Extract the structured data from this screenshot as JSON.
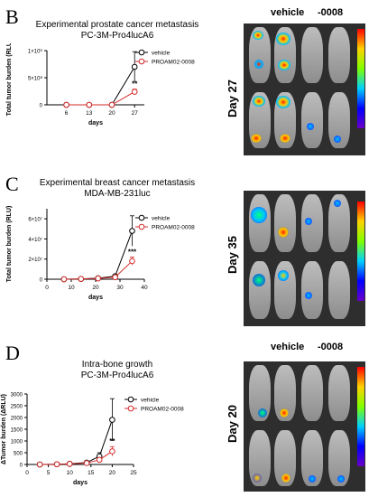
{
  "panels": [
    {
      "letter": "B",
      "title": [
        "Experimental prostate cancer metastasis",
        "PC-3M-Pro4lucA6"
      ],
      "day_label": "Day 27",
      "col_vehicle": "vehicle",
      "col_drug": "-0008"
    },
    {
      "letter": "C",
      "title": [
        "Experimental breast cancer metastasis",
        "MDA-MB-231luc"
      ],
      "day_label": "Day 35",
      "col_vehicle": "vehicle",
      "col_drug": "-0008"
    },
    {
      "letter": "D",
      "title": [
        "Intra-bone growth",
        "PC-3M-Pro4lucA6"
      ],
      "day_label": "Day 20",
      "col_vehicle": "vehicle",
      "col_drug": "-0008"
    }
  ],
  "colors": {
    "vehicle": "#000000",
    "drug": "#d42a2a"
  },
  "chart_data": [
    {
      "type": "line",
      "title": "Experimental prostate cancer metastasis PC-3M-Pro4lucA6",
      "xlabel": "days",
      "ylabel": "Total tumor burden (RLU)",
      "x_ticks": [
        "6",
        "13",
        "20",
        "27"
      ],
      "x": [
        6,
        13,
        20,
        27
      ],
      "y_ticks": [
        "0",
        "5×10⁸",
        "1×10⁹"
      ],
      "ylim": [
        0,
        1000000000
      ],
      "annotation": {
        "text": "**",
        "x": 27
      },
      "series": [
        {
          "name": "vehicle",
          "values": [
            0,
            0,
            0,
            700000000
          ],
          "err": [
            0,
            0,
            0,
            280000000
          ]
        },
        {
          "name": "PROAM02-0008",
          "values": [
            0,
            0,
            0,
            240000000
          ],
          "err": [
            0,
            0,
            0,
            50000000
          ]
        }
      ]
    },
    {
      "type": "line",
      "title": "Experimental breast cancer metastasis MDA-MB-231luc",
      "xlabel": "days",
      "ylabel": "Total tumor burden (RLU)",
      "x_ticks": [
        "0",
        "10",
        "20",
        "30",
        "40"
      ],
      "x": [
        7,
        14,
        21,
        28,
        35
      ],
      "y_ticks": [
        "0",
        "2×10⁷",
        "4×10⁷",
        "6×10⁷"
      ],
      "ylim": [
        0,
        70000000
      ],
      "annotation": {
        "text": "***",
        "x": 35
      },
      "series": [
        {
          "name": "vehicle",
          "values": [
            0,
            300000,
            1000000,
            3000000,
            48000000
          ],
          "err": [
            0,
            200000,
            500000,
            1000000,
            15000000
          ]
        },
        {
          "name": "PROAM02-0008",
          "values": [
            0,
            300000,
            800000,
            2000000,
            18000000
          ],
          "err": [
            0,
            200000,
            500000,
            800000,
            4000000
          ]
        }
      ]
    },
    {
      "type": "line",
      "title": "Intra-bone growth PC-3M-Pro4lucA6",
      "xlabel": "days",
      "ylabel": "ΔTumor burden (ΔRLU)",
      "x_ticks": [
        "0",
        "5",
        "10",
        "15",
        "20",
        "25"
      ],
      "x": [
        3,
        7,
        10,
        14,
        17,
        20
      ],
      "y_ticks": [
        "0",
        "500",
        "1000",
        "1500",
        "2000",
        "2500",
        "3000"
      ],
      "ylim": [
        0,
        3000
      ],
      "annotation": {
        "text": "**",
        "x": 20
      },
      "series": [
        {
          "name": "vehicle",
          "values": [
            0,
            10,
            30,
            80,
            350,
            1900
          ],
          "err": [
            0,
            10,
            20,
            40,
            150,
            900
          ]
        },
        {
          "name": "PROAM02-0008",
          "values": [
            0,
            10,
            25,
            60,
            200,
            560
          ],
          "err": [
            0,
            10,
            15,
            30,
            80,
            200
          ]
        }
      ]
    }
  ]
}
